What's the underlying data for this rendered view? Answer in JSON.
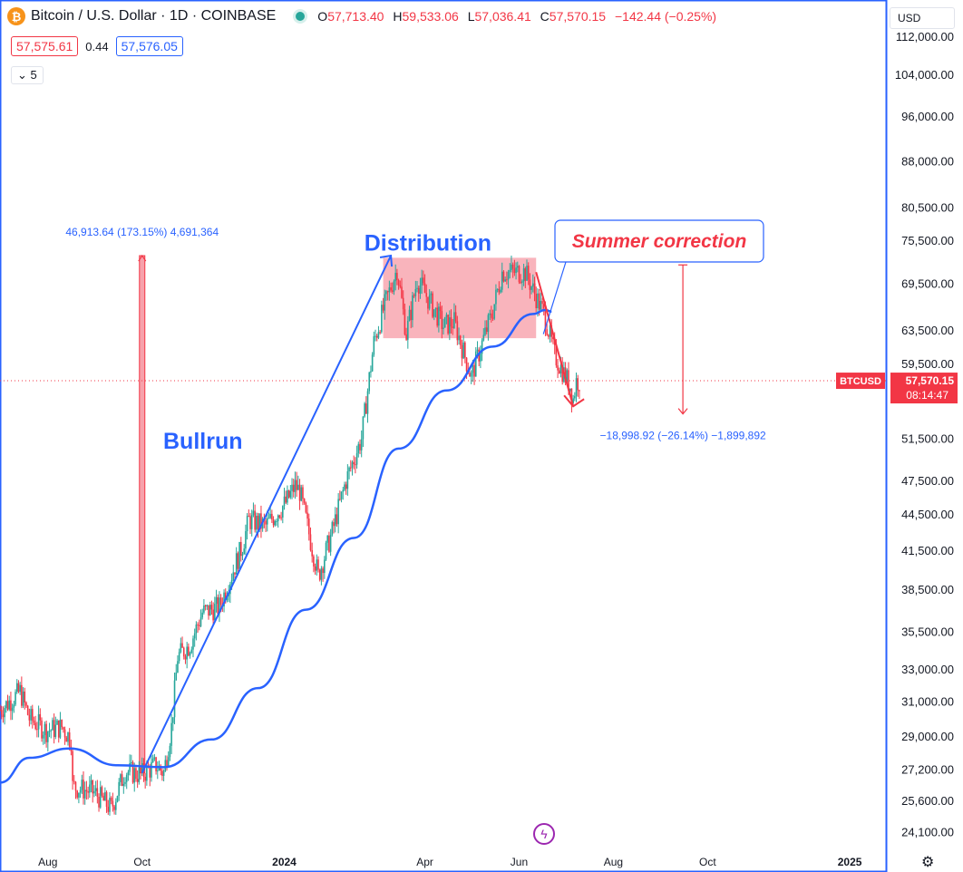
{
  "header": {
    "logo_letter": "₿",
    "symbol_title": "Bitcoin / U.S. Dollar · 1D · COINBASE",
    "ohlc": [
      {
        "label": "O",
        "value": "57,713.40"
      },
      {
        "label": "H",
        "value": "59,533.06"
      },
      {
        "label": "L",
        "value": "57,036.41"
      },
      {
        "label": "C",
        "value": "57,570.15"
      }
    ],
    "change": "−142.44 (−0.25%)"
  },
  "prices": {
    "bid": "57,575.61",
    "spread": "0.44",
    "ask": "57,576.05"
  },
  "indicator_toggle": {
    "chevron": "⌄",
    "count": "5"
  },
  "currency": {
    "label": "USD",
    "chevron": "⌄"
  },
  "colors": {
    "up": "#26a69a",
    "down": "#f23645",
    "ma": "#2962ff",
    "annotation": "#2962ff",
    "accent_red": "#f23645"
  },
  "icons": {
    "bolt": "lightning-icon",
    "settings": "gear-icon"
  },
  "settings_glyph": "⚙",
  "bolt_glyph": "ϟ",
  "last_price": {
    "symbol": "BTCUSD",
    "price": "57,570.15",
    "countdown": "08:14:47",
    "value": 57570.15
  },
  "chart_data": {
    "type": "candlestick",
    "y_scale": "log",
    "ylim": [
      23500,
      118000
    ],
    "x_range": [
      "2023-07-01",
      "2025-01-25"
    ],
    "y_ticks": [
      {
        "value": 112000,
        "label": "112,000.00"
      },
      {
        "value": 104000,
        "label": "104,000.00"
      },
      {
        "value": 96000,
        "label": "96,000.00"
      },
      {
        "value": 88000,
        "label": "88,000.00"
      },
      {
        "value": 80500,
        "label": "80,500.00"
      },
      {
        "value": 75500,
        "label": "75,500.00"
      },
      {
        "value": 69500,
        "label": "69,500.00"
      },
      {
        "value": 63500,
        "label": "63,500.00"
      },
      {
        "value": 59500,
        "label": "59,500.00"
      },
      {
        "value": 51500,
        "label": "51,500.00"
      },
      {
        "value": 47500,
        "label": "47,500.00"
      },
      {
        "value": 44500,
        "label": "44,500.00"
      },
      {
        "value": 41500,
        "label": "41,500.00"
      },
      {
        "value": 38500,
        "label": "38,500.00"
      },
      {
        "value": 35500,
        "label": "35,500.00"
      },
      {
        "value": 33000,
        "label": "33,000.00"
      },
      {
        "value": 31000,
        "label": "31,000.00"
      },
      {
        "value": 29000,
        "label": "29,000.00"
      },
      {
        "value": 27200,
        "label": "27,200.00"
      },
      {
        "value": 25600,
        "label": "25,600.00"
      },
      {
        "value": 24100,
        "label": "24,100.00"
      }
    ],
    "x_ticks": [
      {
        "date": "2023-08-01",
        "label": "Aug",
        "bold": false
      },
      {
        "date": "2023-10-01",
        "label": "Oct",
        "bold": false
      },
      {
        "date": "2024-01-01",
        "label": "2024",
        "bold": true
      },
      {
        "date": "2024-04-01",
        "label": "Apr",
        "bold": false
      },
      {
        "date": "2024-06-01",
        "label": "Jun",
        "bold": false
      },
      {
        "date": "2024-08-01",
        "label": "Aug",
        "bold": false
      },
      {
        "date": "2024-10-01",
        "label": "Oct",
        "bold": false
      },
      {
        "date": "2025-01-01",
        "label": "2025",
        "bold": true
      }
    ],
    "price_path": [
      [
        "2023-07-01",
        30500
      ],
      [
        "2023-07-05",
        30800
      ],
      [
        "2023-07-14",
        31600
      ],
      [
        "2023-07-20",
        30000
      ],
      [
        "2023-07-31",
        29300
      ],
      [
        "2023-08-10",
        29500
      ],
      [
        "2023-08-16",
        28800
      ],
      [
        "2023-08-17",
        26300
      ],
      [
        "2023-08-31",
        26000
      ],
      [
        "2023-09-11",
        25200
      ],
      [
        "2023-09-20",
        27100
      ],
      [
        "2023-09-30",
        26900
      ],
      [
        "2023-10-10",
        27400
      ],
      [
        "2023-10-15",
        27000
      ],
      [
        "2023-10-20",
        29500
      ],
      [
        "2023-10-24",
        33800
      ],
      [
        "2023-11-01",
        34600
      ],
      [
        "2023-11-09",
        36800
      ],
      [
        "2023-11-20",
        37200
      ],
      [
        "2023-12-05",
        41900
      ],
      [
        "2023-12-09",
        44000
      ],
      [
        "2023-12-20",
        43500
      ],
      [
        "2024-01-02",
        45500
      ],
      [
        "2024-01-08",
        47000
      ],
      [
        "2024-01-11",
        46500
      ],
      [
        "2024-01-23",
        39500
      ],
      [
        "2024-02-01",
        43000
      ],
      [
        "2024-02-10",
        47500
      ],
      [
        "2024-02-20",
        51500
      ],
      [
        "2024-02-28",
        62000
      ],
      [
        "2024-03-05",
        66000
      ],
      [
        "2024-03-14",
        71500
      ],
      [
        "2024-03-20",
        63000
      ],
      [
        "2024-03-27",
        70000
      ],
      [
        "2024-04-13",
        64000
      ],
      [
        "2024-04-20",
        64500
      ],
      [
        "2024-05-01",
        58000
      ],
      [
        "2024-05-15",
        66000
      ],
      [
        "2024-05-21",
        71000
      ],
      [
        "2024-06-05",
        71000
      ],
      [
        "2024-06-18",
        65000
      ],
      [
        "2024-06-24",
        60500
      ],
      [
        "2024-07-04",
        57000
      ],
      [
        "2024-07-06",
        55600
      ],
      [
        "2024-07-08",
        57500
      ],
      [
        "2024-07-10",
        57570
      ]
    ],
    "moving_average": {
      "points": [
        [
          "2023-07-01",
          26500
        ],
        [
          "2023-07-20",
          27800
        ],
        [
          "2023-08-15",
          28300
        ],
        [
          "2023-09-15",
          27400
        ],
        [
          "2023-10-15",
          27300
        ],
        [
          "2023-11-15",
          28800
        ],
        [
          "2023-12-15",
          31800
        ],
        [
          "2024-01-15",
          37000
        ],
        [
          "2024-02-15",
          42500
        ],
        [
          "2024-03-15",
          50500
        ],
        [
          "2024-04-15",
          56500
        ],
        [
          "2024-05-15",
          61500
        ],
        [
          "2024-06-10",
          65500
        ],
        [
          "2024-06-18",
          66000
        ],
        [
          "2024-06-22",
          65800
        ]
      ]
    },
    "annotations": {
      "distribution_box": {
        "start": "2024-03-05",
        "end": "2024-06-12",
        "top": 73000,
        "bottom": 62500,
        "label": "Distribution"
      },
      "bullrun_label": {
        "text": "Bullrun",
        "date": "2023-12-05",
        "price": 50500
      },
      "bullrun_line": [
        [
          "2023-10-01",
          27000
        ],
        [
          "2024-03-10",
          73300
        ]
      ],
      "measure_up": {
        "date": "2023-10-01",
        "from": 27000,
        "to": 73300,
        "text": "46,913.64 (173.15%) 4,691,364"
      },
      "measure_down": {
        "date": "2024-09-15",
        "from": 72000,
        "to": 54000,
        "text": "−18,998.92 (−26.14%) −1,899,892"
      },
      "correction_arrow": [
        [
          "2024-06-12",
          71000
        ],
        [
          "2024-07-06",
          54800
        ]
      ],
      "callout": {
        "text": "Summer correction"
      }
    }
  }
}
